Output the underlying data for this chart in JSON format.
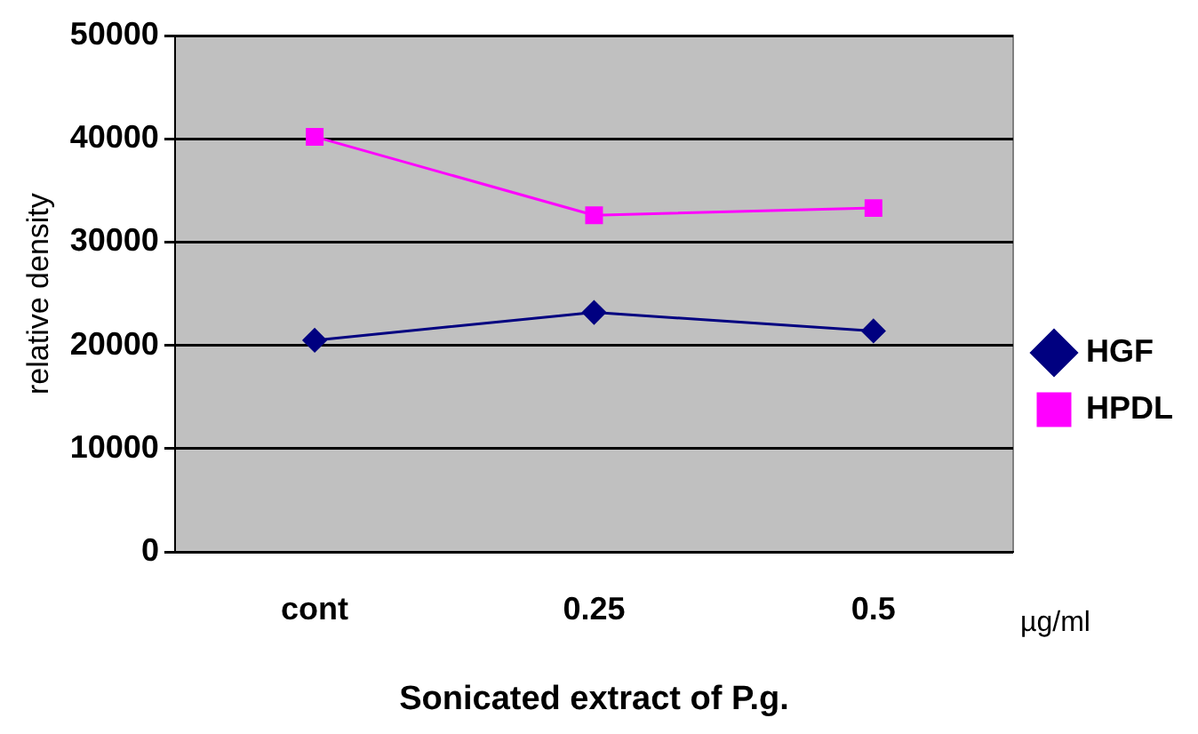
{
  "chart_data": {
    "type": "line",
    "xlabel": "Sonicated extract of P.g.",
    "ylabel": "relative density",
    "annotations": [
      "µg/ml"
    ],
    "categories": [
      "cont",
      "0.25",
      "0.5"
    ],
    "series": [
      {
        "name": "HGF",
        "color": "#000080",
        "values": [
          20500,
          23200,
          21400
        ],
        "marker": "diamond"
      },
      {
        "name": "HPDL",
        "color": "#ff00ff",
        "values": [
          40200,
          32600,
          33300
        ],
        "marker": "square"
      }
    ],
    "ylim": [
      0,
      50000
    ],
    "yticks": [
      0,
      10000,
      20000,
      30000,
      40000,
      50000
    ],
    "grid": "y",
    "legend": "right"
  }
}
